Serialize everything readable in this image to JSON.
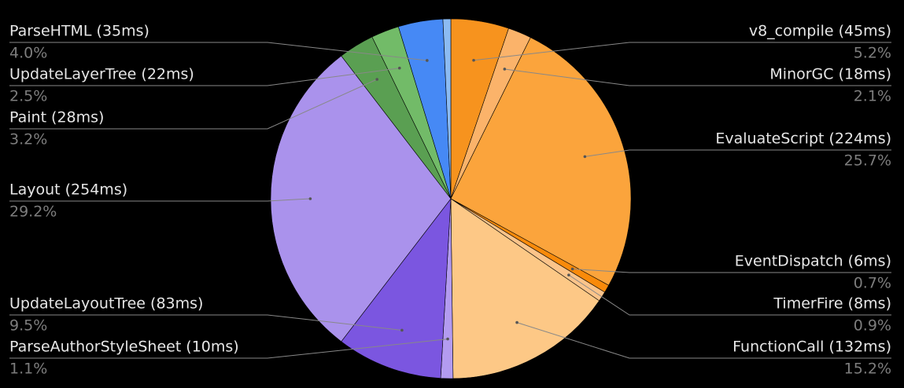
{
  "chart_data": {
    "type": "pie",
    "categories": [
      "v8_compile (45ms)",
      "MinorGC (18ms)",
      "EvaluateScript (224ms)",
      "EventDispatch (6ms)",
      "TimerFire (8ms)",
      "FunctionCall (132ms)",
      "ParseAuthorStyleSheet (10ms)",
      "UpdateLayoutTree (83ms)",
      "Layout (254ms)",
      "Paint (28ms)",
      "UpdateLayerTree (22ms)",
      "ParseHTML (35ms)",
      null
    ],
    "values": [
      5.2,
      2.1,
      25.7,
      0.7,
      0.9,
      15.2,
      1.1,
      9.5,
      29.2,
      3.2,
      2.5,
      4.0,
      0.7
    ],
    "value_labels": [
      "5.2%",
      "2.1%",
      "25.7%",
      "0.7%",
      "0.9%",
      "15.2%",
      "1.1%",
      "9.5%",
      "29.2%",
      "3.2%",
      "2.5%",
      "4.0%",
      null
    ],
    "colors": [
      "#f7931e",
      "#fbb36a",
      "#fba43c",
      "#f98a0a",
      "#fcc48a",
      "#fdc886",
      "#b39bf0",
      "#7b56e0",
      "#aa92ec",
      "#5a9f52",
      "#72bb68",
      "#4689f5",
      "#8cbbf2"
    ]
  }
}
